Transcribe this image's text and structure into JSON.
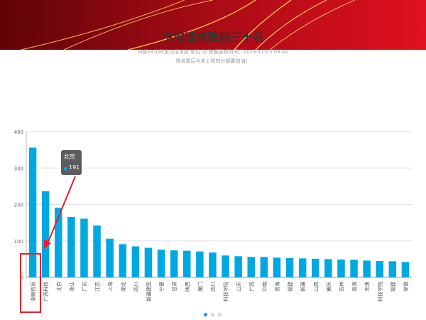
{
  "header": {
    "brand_color": "#c8102e"
  },
  "chart_header": {
    "title": "生均请求数前三十名",
    "subtitle_line1": "分部24小时生均请求数 单位:次 数据更新时间：2019-11-25 09:42",
    "subtitle_line2": "排名靠后与未上榜的分部要加油！"
  },
  "tooltip": {
    "name": "北京",
    "value": "191"
  },
  "pagination": {
    "pages": 3,
    "active": 1
  },
  "chart_data": {
    "type": "bar",
    "categories": [
      "湖南信息",
      "广西科技",
      "北京",
      "浙江",
      "广东",
      "江苏",
      "上海",
      "湖北",
      "四川",
      "新疆建国",
      "宁夏",
      "甘肃",
      "陕西",
      "厦门",
      "四川",
      "科技学院",
      "山东",
      "广西",
      "中南",
      "青海",
      "福建",
      "新疆",
      "山西",
      "重庆",
      "吉林",
      "青海",
      "天津",
      "科技学院",
      "福建",
      "安徽"
    ],
    "values": [
      356,
      236,
      191,
      166,
      161,
      142,
      106,
      91,
      85,
      81,
      76,
      74,
      73,
      71,
      68,
      60,
      58,
      56,
      56,
      54,
      53,
      52,
      51,
      50,
      49,
      48,
      46,
      45,
      44,
      42
    ],
    "title": "",
    "xlabel": "",
    "ylabel": "",
    "ylim": [
      0,
      400
    ],
    "yticks": [
      "0",
      "100",
      "200",
      "300",
      "400"
    ],
    "bar_color": "#00a8e1"
  },
  "annotation": {
    "color": "#e8202a"
  }
}
